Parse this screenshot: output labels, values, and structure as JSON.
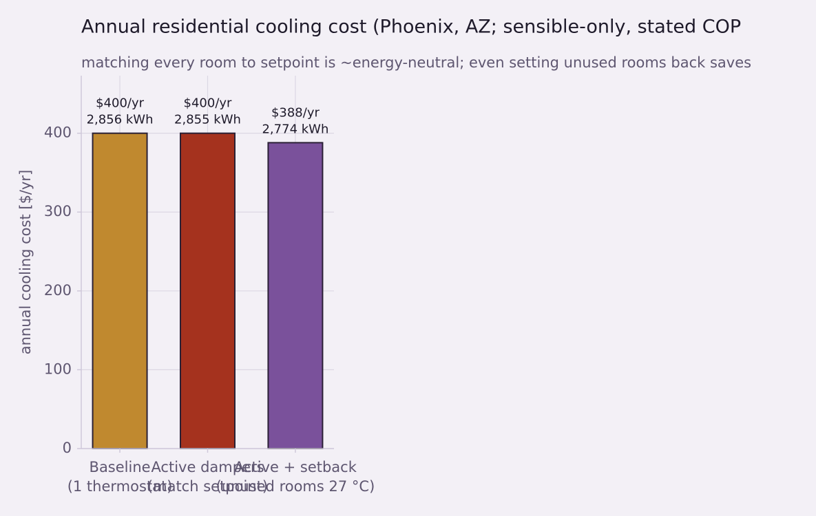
{
  "chart_data": {
    "type": "bar",
    "title": "Annual residential cooling cost (Phoenix, AZ; sensible-only, stated COP",
    "subtitle": "matching every room to setpoint is ~energy-neutral; even setting unused rooms back saves",
    "ylabel": "annual cooling cost  [$/yr]",
    "categories": [
      [
        "Baseline",
        "(1 thermostat)"
      ],
      [
        "Active dampers",
        "(match setpoint)"
      ],
      [
        "Active + setback",
        "(unused rooms 27 °C)"
      ]
    ],
    "values": [
      400,
      400,
      388
    ],
    "value_labels": [
      "$400/yr",
      "$400/yr",
      "$388/yr"
    ],
    "energy_labels": [
      "2,856 kWh",
      "2,855 kWh",
      "2,774 kWh"
    ],
    "colors": [
      "#c0892f",
      "#a5321e",
      "#7a519b"
    ],
    "ylim": [
      0,
      473
    ],
    "yticks": [
      0,
      100,
      200,
      300,
      400
    ],
    "grid": true
  }
}
